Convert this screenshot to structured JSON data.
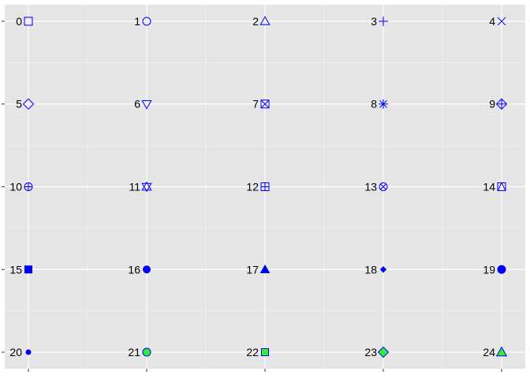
{
  "chart_data": {
    "type": "scatter",
    "title": "",
    "xlabel": "",
    "ylabel": "",
    "grid": true,
    "legend": "none",
    "xlim": [
      0.8,
      5.2
    ],
    "ylim": [
      0.8,
      5.2
    ],
    "y_tick_labels": [
      "0",
      "5",
      "10",
      "15",
      "20"
    ],
    "stroke_color": "#0000ff",
    "fill_color": "#33ee33",
    "points": [
      {
        "label": "0",
        "shape": 0,
        "x": 1,
        "y": 5
      },
      {
        "label": "1",
        "shape": 1,
        "x": 2,
        "y": 5
      },
      {
        "label": "2",
        "shape": 2,
        "x": 3,
        "y": 5
      },
      {
        "label": "3",
        "shape": 3,
        "x": 4,
        "y": 5
      },
      {
        "label": "4",
        "shape": 4,
        "x": 5,
        "y": 5
      },
      {
        "label": "5",
        "shape": 5,
        "x": 1,
        "y": 4
      },
      {
        "label": "6",
        "shape": 6,
        "x": 2,
        "y": 4
      },
      {
        "label": "7",
        "shape": 7,
        "x": 3,
        "y": 4
      },
      {
        "label": "8",
        "shape": 8,
        "x": 4,
        "y": 4
      },
      {
        "label": "9",
        "shape": 9,
        "x": 5,
        "y": 4
      },
      {
        "label": "10",
        "shape": 10,
        "x": 1,
        "y": 3
      },
      {
        "label": "11",
        "shape": 11,
        "x": 2,
        "y": 3
      },
      {
        "label": "12",
        "shape": 12,
        "x": 3,
        "y": 3
      },
      {
        "label": "13",
        "shape": 13,
        "x": 4,
        "y": 3
      },
      {
        "label": "14",
        "shape": 14,
        "x": 5,
        "y": 3
      },
      {
        "label": "15",
        "shape": 15,
        "x": 1,
        "y": 2
      },
      {
        "label": "16",
        "shape": 16,
        "x": 2,
        "y": 2
      },
      {
        "label": "17",
        "shape": 17,
        "x": 3,
        "y": 2
      },
      {
        "label": "18",
        "shape": 18,
        "x": 4,
        "y": 2
      },
      {
        "label": "19",
        "shape": 19,
        "x": 5,
        "y": 2
      },
      {
        "label": "20",
        "shape": 20,
        "x": 1,
        "y": 1
      },
      {
        "label": "21",
        "shape": 21,
        "x": 2,
        "y": 1
      },
      {
        "label": "22",
        "shape": 22,
        "x": 3,
        "y": 1
      },
      {
        "label": "23",
        "shape": 23,
        "x": 4,
        "y": 1
      },
      {
        "label": "24",
        "shape": 24,
        "x": 5,
        "y": 1
      }
    ]
  }
}
